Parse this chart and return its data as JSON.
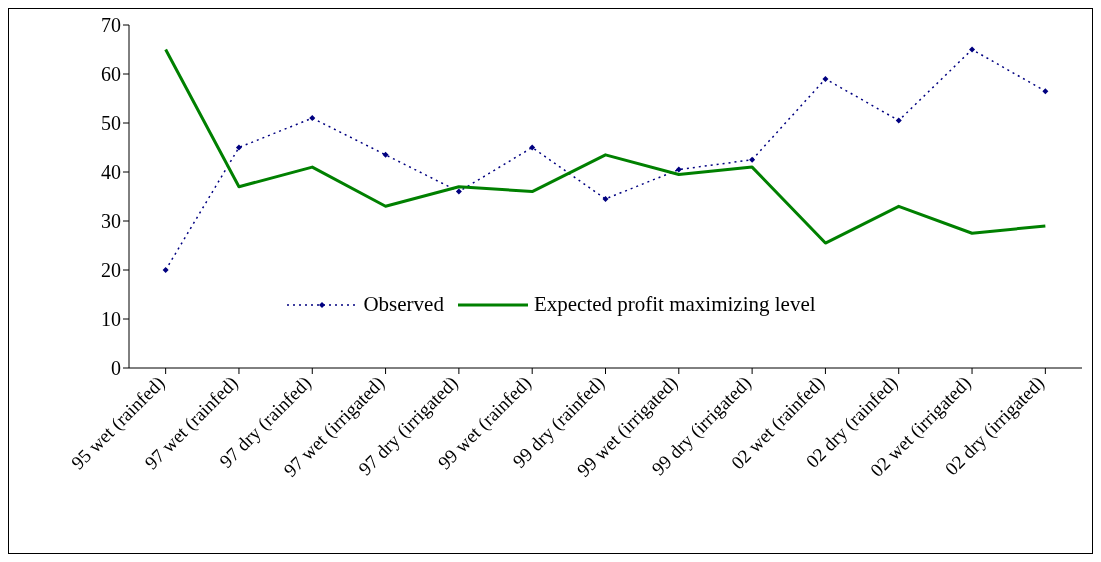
{
  "chart_data": {
    "type": "line",
    "categories": [
      "95 wet (rainfed)",
      "97 wet (rainfed)",
      "97 dry (rainfed)",
      "97 wet (irrigated)",
      "97 dry (irrigated)",
      "99 wet (rainfed)",
      "99 dry (rainfed)",
      "99 wet (irrigated)",
      "99 dry (irrigated)",
      "02 wet (rainfed)",
      "02 dry (rainfed)",
      "02 wet (irrigated)",
      "02 dry (irrigated)"
    ],
    "series": [
      {
        "name": "Observed",
        "color": "#000080",
        "marker": "diamond",
        "line_style": "dotted",
        "values": [
          20,
          45,
          51,
          43.5,
          36,
          45,
          34.5,
          40.5,
          42.5,
          59,
          50.5,
          65,
          56.5
        ]
      },
      {
        "name": "Expected profit maximizing level",
        "color": "#008000",
        "marker": "none",
        "line_style": "solid",
        "values": [
          65,
          37,
          41,
          33,
          37,
          36,
          43.5,
          39.5,
          41,
          25.5,
          33,
          27.5,
          29
        ]
      }
    ],
    "ylim": [
      0,
      70
    ],
    "yticks": [
      0,
      10,
      20,
      30,
      40,
      50,
      60,
      70
    ],
    "grid": false,
    "legend": "center"
  }
}
